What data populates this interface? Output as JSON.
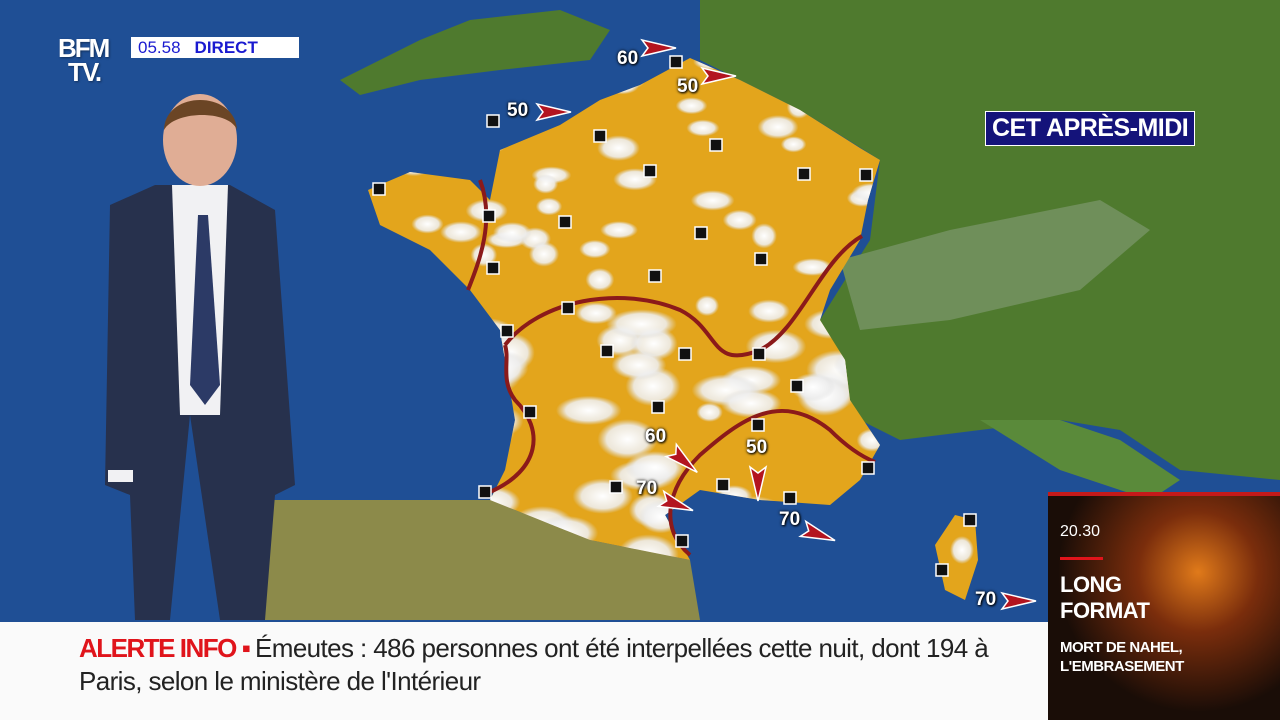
{
  "channel": {
    "logo_line1": "BFM",
    "logo_line2": "TV.",
    "time": "05.58",
    "live_label": "DIRECT"
  },
  "map": {
    "title": "CET APRÈS-MIDI",
    "colors": {
      "sea": "#1f4f95",
      "land": "#4f7a2e",
      "sunny": "#e3a51c",
      "cloud": "#f2f2f2",
      "front": "#8b1a1a"
    },
    "wind_labels": [
      "60",
      "50",
      "50",
      "60",
      "50",
      "70",
      "70",
      "70"
    ]
  },
  "ticker": {
    "alert_label": "ALERTE INFO",
    "headline": "Émeutes : 486 personnes ont été interpellées cette nuit, dont 194 à Paris, selon le ministère de l'Intérieur"
  },
  "promo": {
    "time": "20.30",
    "title_line1": "LONG",
    "title_line2": "FORMAT",
    "subtitle_line1": "MORT DE NAHEL,",
    "subtitle_line2": "L'EMBRASEMENT"
  }
}
